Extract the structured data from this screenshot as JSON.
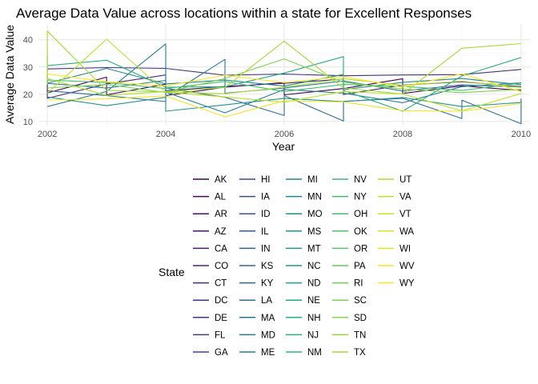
{
  "chart_data": {
    "type": "line",
    "title": "Average Data Value across locations within a state for Excellent Responses",
    "xlabel": "Year",
    "ylabel": "Average Data Value",
    "x_ticks": [
      "2002",
      "2004",
      "2006",
      "2008",
      "2010"
    ],
    "y_ticks": [
      "10",
      "20",
      "30",
      "40"
    ],
    "xlim": [
      2001.85,
      2010.15
    ],
    "ylim": [
      8.5,
      45.5
    ],
    "grid": true,
    "legend_title": "State",
    "legend_position": "bottom",
    "colormap": "viridis",
    "states": [
      "AK",
      "AL",
      "AR",
      "AZ",
      "CA",
      "CO",
      "CT",
      "DC",
      "DE",
      "FL",
      "GA",
      "HI",
      "IA",
      "ID",
      "IL",
      "IN",
      "KS",
      "KY",
      "LA",
      "MA",
      "MD",
      "ME",
      "MI",
      "MN",
      "MO",
      "MS",
      "MT",
      "NC",
      "ND",
      "NE",
      "NH",
      "NJ",
      "NM",
      "NV",
      "NY",
      "OH",
      "OK",
      "OR",
      "PA",
      "RI",
      "SC",
      "SD",
      "TN",
      "TX",
      "UT",
      "VA",
      "VT",
      "WA",
      "WI",
      "WV",
      "WY"
    ],
    "series": [
      {
        "name": "AK",
        "x": [
          2002,
          2002,
          2003,
          2003,
          2004,
          2004,
          2005,
          2006,
          2006,
          2007,
          2008,
          2008,
          2009,
          2010
        ],
        "y": [
          27.9,
          20.5,
          26.3,
          19.8,
          23.7,
          19.5,
          22.6,
          24.3,
          19.8,
          22.1,
          25.7,
          20.3,
          23.1,
          21.4
        ]
      },
      {
        "name": "DC",
        "x": [
          2002,
          2003,
          2004,
          2005,
          2006,
          2007,
          2008,
          2009,
          2010
        ],
        "y": [
          29.3,
          29.8,
          29.5,
          27.0,
          27.4,
          26.8,
          27.1,
          27.2,
          29.1
        ]
      },
      {
        "name": "CT",
        "x": [
          2002,
          2002,
          2003,
          2004,
          2004,
          2005,
          2006,
          2007,
          2007,
          2008,
          2009,
          2010
        ],
        "y": [
          26.0,
          18.5,
          23.8,
          27.1,
          21.3,
          22.9,
          24.0,
          25.6,
          19.9,
          23.4,
          24.6,
          22.8
        ]
      },
      {
        "name": "LA",
        "x": [
          2002,
          2003,
          2004,
          2004,
          2005,
          2006,
          2006,
          2007,
          2007,
          2008,
          2009,
          2009,
          2010,
          2010
        ],
        "y": [
          21.3,
          19.5,
          17.3,
          22.2,
          18.9,
          12.2,
          19.5,
          10.2,
          17.4,
          18.5,
          11.1,
          17.8,
          9.2,
          18.4
        ]
      },
      {
        "name": "MD",
        "x": [
          2002,
          2003,
          2004,
          2004,
          2005,
          2005,
          2006,
          2007,
          2008,
          2009,
          2010
        ],
        "y": [
          24.0,
          22.3,
          25.1,
          19.0,
          32.8,
          20.4,
          22.3,
          24.9,
          21.2,
          23.5,
          22.6
        ]
      },
      {
        "name": "ME",
        "x": [
          2002,
          2003,
          2004,
          2004,
          2005,
          2006,
          2007,
          2008,
          2009,
          2010
        ],
        "y": [
          15.5,
          21.0,
          38.5,
          20.8,
          13.2,
          21.8,
          20.4,
          16.9,
          22.8,
          24.2
        ]
      },
      {
        "name": "MN",
        "x": [
          2002,
          2002,
          2003,
          2004,
          2005,
          2006,
          2007,
          2007,
          2008,
          2009,
          2010
        ],
        "y": [
          34.2,
          24.1,
          29.5,
          23.8,
          25.2,
          23.0,
          27.3,
          21.7,
          24.4,
          25.8,
          23.5
        ]
      },
      {
        "name": "MS",
        "x": [
          2002,
          2003,
          2004,
          2004,
          2005,
          2006,
          2007,
          2008,
          2009,
          2010
        ],
        "y": [
          19.0,
          15.8,
          18.9,
          13.8,
          16.1,
          18.5,
          17.3,
          18.8,
          15.5,
          17.0
        ]
      },
      {
        "name": "NH",
        "x": [
          2002,
          2003,
          2004,
          2005,
          2006,
          2007,
          2007,
          2008,
          2009,
          2010
        ],
        "y": [
          30.5,
          32.5,
          22.6,
          22.8,
          27.8,
          33.8,
          21.4,
          13.8,
          26.7,
          33.5
        ]
      },
      {
        "name": "OH",
        "x": [
          2002,
          2003,
          2004,
          2005,
          2006,
          2007,
          2008,
          2009,
          2010
        ],
        "y": [
          25.2,
          24.3,
          22.1,
          24.7,
          21.0,
          23.6,
          22.9,
          21.4,
          24.1
        ]
      },
      {
        "name": "SC",
        "x": [
          2002,
          2003,
          2004,
          2005,
          2006,
          2007,
          2008,
          2009,
          2010
        ],
        "y": [
          22.3,
          23.6,
          20.7,
          25.8,
          33.0,
          24.4,
          21.9,
          20.6,
          21.8
        ]
      },
      {
        "name": "TX",
        "x": [
          2002,
          2002,
          2003,
          2004,
          2005,
          2006,
          2007,
          2008,
          2009,
          2010
        ],
        "y": [
          23.5,
          43.2,
          21.4,
          20.9,
          22.5,
          39.5,
          22.3,
          20.1,
          36.9,
          38.6
        ]
      },
      {
        "name": "UT",
        "x": [
          2002,
          2003,
          2004,
          2005,
          2006,
          2007,
          2008,
          2009,
          2010
        ],
        "y": [
          25.8,
          19.6,
          21.0,
          20.2,
          22.6,
          25.7,
          23.3,
          24.8,
          22.5
        ]
      },
      {
        "name": "VA",
        "x": [
          2002,
          2003,
          2004,
          2005,
          2006,
          2007,
          2008,
          2009,
          2010
        ],
        "y": [
          20.4,
          40.2,
          20.8,
          19.0,
          17.1,
          21.0,
          20.1,
          13.9,
          20.3
        ]
      },
      {
        "name": "WV",
        "x": [
          2002,
          2003,
          2004,
          2005,
          2006,
          2007,
          2008,
          2009,
          2010
        ],
        "y": [
          17.9,
          18.3,
          19.4,
          11.7,
          17.6,
          17.2,
          14.0,
          13.8,
          16.6
        ]
      },
      {
        "name": "WY",
        "x": [
          2002,
          2003,
          2004,
          2005,
          2006,
          2007,
          2008,
          2009,
          2010
        ],
        "y": [
          27.5,
          24.6,
          23.1,
          27.0,
          24.3,
          26.5,
          22.6,
          27.5,
          21.0
        ]
      }
    ]
  }
}
